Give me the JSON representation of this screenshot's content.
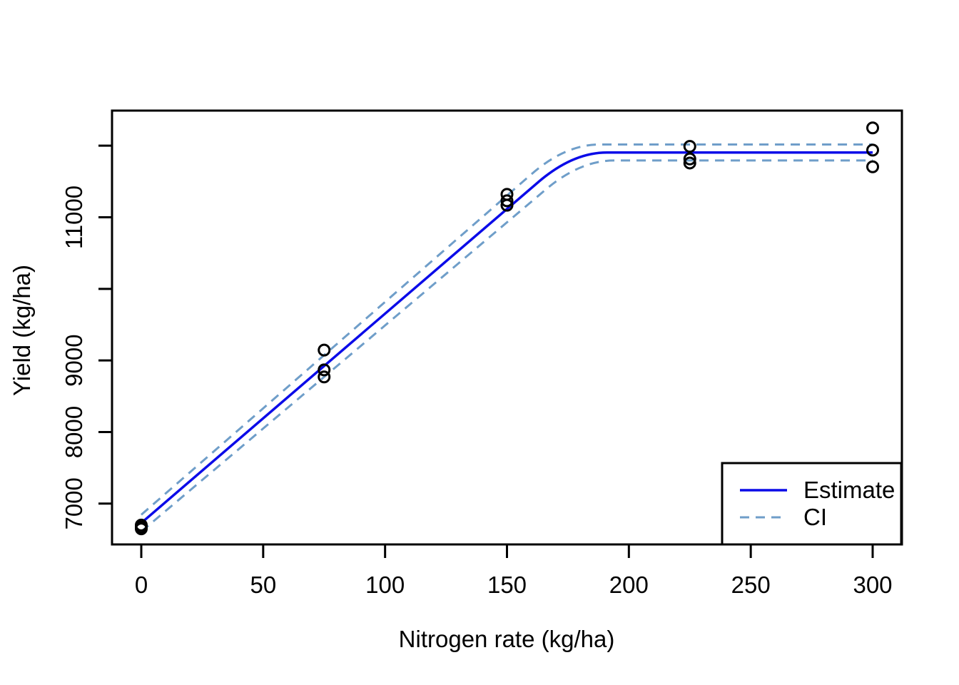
{
  "chart_data": {
    "type": "scatter",
    "subtype": "linear-plateau fit with confidence band (R base graphics)",
    "title": "",
    "xlabel": "Nitrogen rate (kg/ha)",
    "ylabel": "Yield (kg/ha)",
    "xlim": [
      -12,
      312
    ],
    "ylim": [
      6430,
      12490
    ],
    "grid": "off",
    "x_ticks": [
      {
        "value": 0,
        "label": "0"
      },
      {
        "value": 50,
        "label": "50"
      },
      {
        "value": 100,
        "label": "100"
      },
      {
        "value": 150,
        "label": "150"
      },
      {
        "value": 200,
        "label": "200"
      },
      {
        "value": 250,
        "label": "250"
      },
      {
        "value": 300,
        "label": "300"
      }
    ],
    "y_ticks": [
      {
        "value": 7000,
        "label": "7000"
      },
      {
        "value": 8000,
        "label": "8000"
      },
      {
        "value": 9000,
        "label": "9000"
      },
      {
        "value": 10000,
        "label": ""
      },
      {
        "value": 11000,
        "label": "11000"
      },
      {
        "value": 12000,
        "label": ""
      }
    ],
    "points": {
      "marker": "open-circle",
      "color": "#000000",
      "x": [
        0,
        0,
        0,
        75,
        75,
        75,
        150,
        150,
        150,
        225,
        225,
        225,
        300,
        300,
        300
      ],
      "y": [
        6700,
        6672,
        6648,
        9145,
        8868,
        8770,
        11320,
        11230,
        11168,
        11990,
        11815,
        11758,
        12248,
        11938,
        11705
      ]
    },
    "series": [
      {
        "name": "Estimate",
        "style": "solid",
        "color": "#0b0be8",
        "width": 3.5,
        "points": [
          [
            0,
            6730
          ],
          [
            177,
            11905
          ],
          [
            300,
            11905
          ]
        ]
      },
      {
        "name": "CI upper",
        "style": "dashed",
        "color": "#6f9ec9",
        "width": 3,
        "points": [
          [
            0,
            6845
          ],
          [
            174,
            12017
          ],
          [
            300,
            12017
          ]
        ]
      },
      {
        "name": "CI lower",
        "style": "dashed",
        "color": "#6f9ec9",
        "width": 3,
        "points": [
          [
            0,
            6610
          ],
          [
            180,
            11793
          ],
          [
            300,
            11793
          ]
        ]
      }
    ],
    "legend": {
      "position": "bottom-right",
      "items": [
        {
          "label": "Estimate",
          "style": "solid",
          "color": "#0b0be8"
        },
        {
          "label": "CI",
          "style": "dashed",
          "color": "#6f9ec9"
        }
      ]
    },
    "colors": {
      "estimate": "#0b0be8",
      "ci": "#6f9ec9",
      "axis": "#000000",
      "background": "#ffffff"
    }
  }
}
